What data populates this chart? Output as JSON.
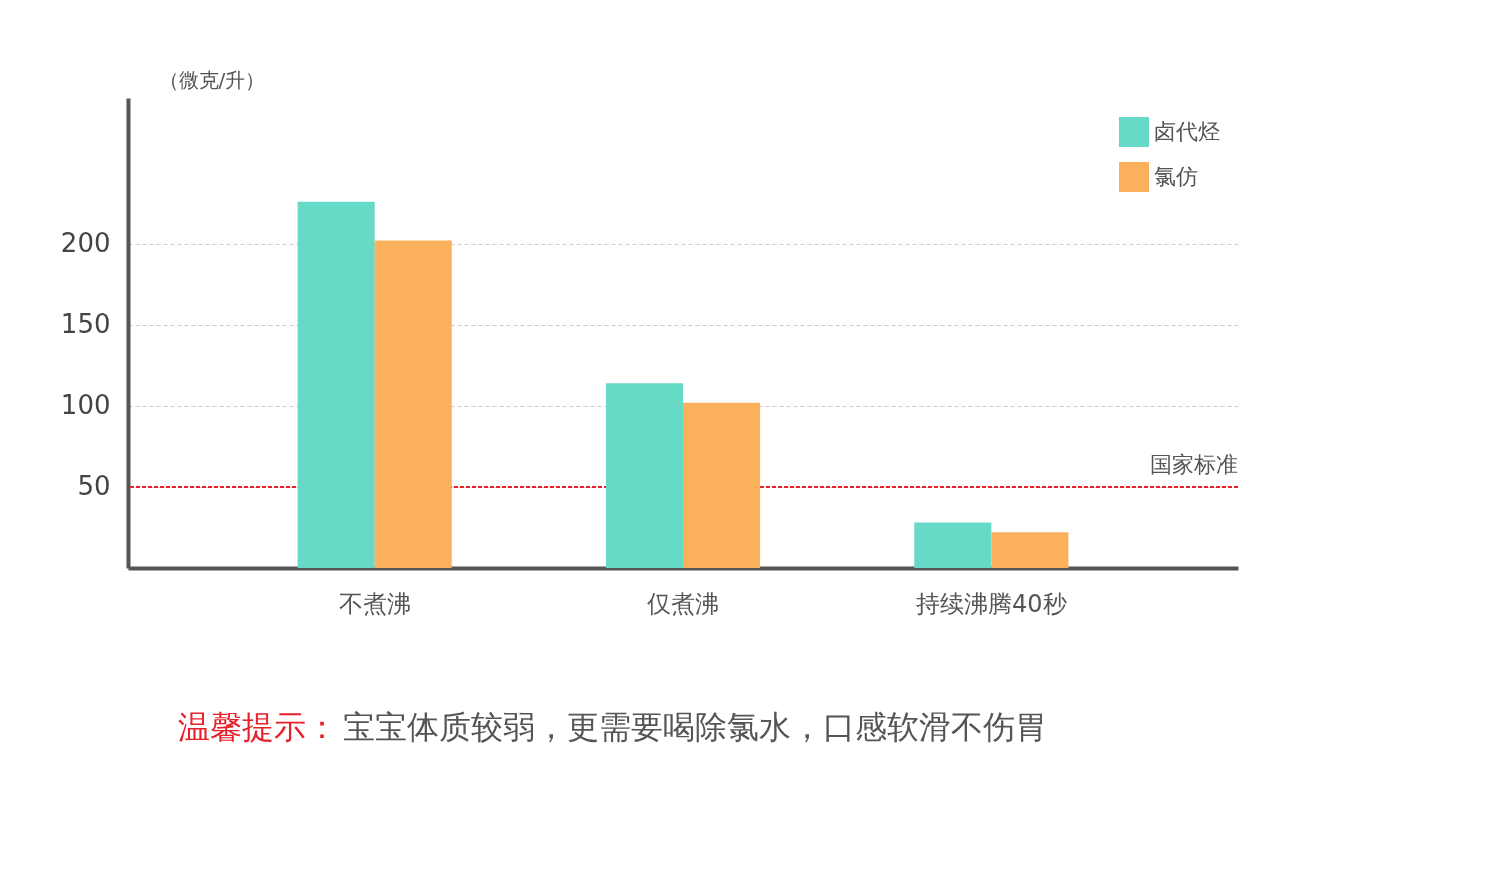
{
  "chart_data": {
    "type": "bar",
    "ylabel": "（微克/升）",
    "categories": [
      "不煮沸",
      "仅煮沸",
      "持续沸腾40秒"
    ],
    "series": [
      {
        "name": "卤代烃",
        "color": "#66d9c7",
        "values": [
          226,
          114,
          28
        ]
      },
      {
        "name": "氯仿",
        "color": "#fbb05c",
        "values": [
          202,
          102,
          22
        ]
      }
    ],
    "ylim": [
      0,
      290
    ],
    "yticks": [
      50,
      100,
      150,
      200
    ],
    "grid": "y",
    "legend": "top right",
    "ref_lines": [
      {
        "axis": "y",
        "value": 50,
        "label": "国家标准",
        "color": "#e8202a",
        "line_style": "dashed"
      }
    ],
    "annotations": [
      "温馨提示：",
      "宝宝体质较弱，更需要喝除氯水，口感软滑不伤胃"
    ]
  }
}
